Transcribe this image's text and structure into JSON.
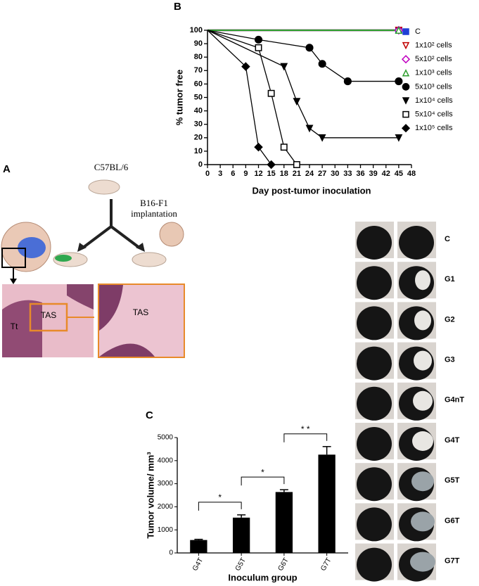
{
  "chart_data": [
    {
      "type": "line",
      "panel_label": "B",
      "x_label": "Day post-tumor inoculation",
      "y_label": "% tumor free",
      "xlim": [
        0,
        48
      ],
      "xticks": [
        0,
        3,
        6,
        9,
        12,
        15,
        18,
        21,
        24,
        27,
        30,
        33,
        36,
        39,
        42,
        45,
        48
      ],
      "ylim": [
        0,
        100
      ],
      "yticks": [
        0,
        10,
        20,
        30,
        40,
        50,
        60,
        70,
        80,
        90,
        100
      ],
      "series": [
        {
          "name": "C",
          "color": "#1f3fd6",
          "marker": "square",
          "filled": true,
          "x": [
            0,
            45
          ],
          "values": [
            100,
            100
          ]
        },
        {
          "name": "1x10² cells",
          "color": "#c00000",
          "marker": "triangle-down",
          "filled": false,
          "x": [
            0,
            45
          ],
          "values": [
            100,
            100
          ]
        },
        {
          "name": "5x10² cells",
          "color": "#c000c0",
          "marker": "diamond",
          "filled": false,
          "x": [
            0,
            45
          ],
          "values": [
            100,
            100
          ]
        },
        {
          "name": "1x10³ cells",
          "color": "#2e9e2e",
          "marker": "triangle-up",
          "filled": false,
          "x": [
            0,
            45
          ],
          "values": [
            100,
            100
          ]
        },
        {
          "name": "5x10³ cells",
          "color": "#000000",
          "marker": "circle",
          "filled": true,
          "x": [
            0,
            12,
            24,
            27,
            33,
            45
          ],
          "values": [
            100,
            93,
            87,
            75,
            62,
            62
          ]
        },
        {
          "name": "1x10⁴ cells",
          "color": "#000000",
          "marker": "triangle-down",
          "filled": true,
          "x": [
            0,
            18,
            21,
            24,
            27,
            45
          ],
          "values": [
            100,
            73,
            47,
            27,
            20,
            20
          ]
        },
        {
          "name": "5x10⁴ cells",
          "color": "#000000",
          "marker": "square",
          "filled": false,
          "x": [
            0,
            12,
            15,
            18,
            21
          ],
          "values": [
            100,
            87,
            53,
            13,
            0
          ]
        },
        {
          "name": "1x10⁵ cells",
          "color": "#000000",
          "marker": "diamond",
          "filled": true,
          "x": [
            0,
            9,
            12,
            15
          ],
          "values": [
            100,
            73,
            13,
            0
          ]
        }
      ]
    },
    {
      "type": "bar",
      "panel_label": "C",
      "x_label": "Inoculum group",
      "y_label": "Tumor volume/ mm³",
      "categories": [
        "G4T",
        "G5T",
        "G6T",
        "G7T"
      ],
      "values": [
        560,
        1530,
        2640,
        4260
      ],
      "errors": [
        30,
        120,
        100,
        350
      ],
      "color": "#000000",
      "ylim": [
        0,
        5000
      ],
      "yticks": [
        0,
        1000,
        2000,
        3000,
        4000,
        5000
      ],
      "significance": [
        {
          "pair": [
            "G4T",
            "G5T"
          ],
          "label": "*"
        },
        {
          "pair": [
            "G5T",
            "G6T"
          ],
          "label": "*"
        },
        {
          "pair": [
            "G6T",
            "G7T"
          ],
          "label": "* *"
        }
      ]
    }
  ],
  "diagram": {
    "panel_label": "A",
    "strain": "C57BL/6",
    "procedure": [
      "B16-F1",
      "implantation"
    ],
    "histology_labels": [
      "Tt",
      "TAS",
      "TAS"
    ]
  },
  "photo_panel": {
    "groups": [
      "C",
      "G1",
      "G2",
      "G3",
      "G4nT",
      "G4T",
      "G5T",
      "G6T",
      "G7T"
    ]
  }
}
